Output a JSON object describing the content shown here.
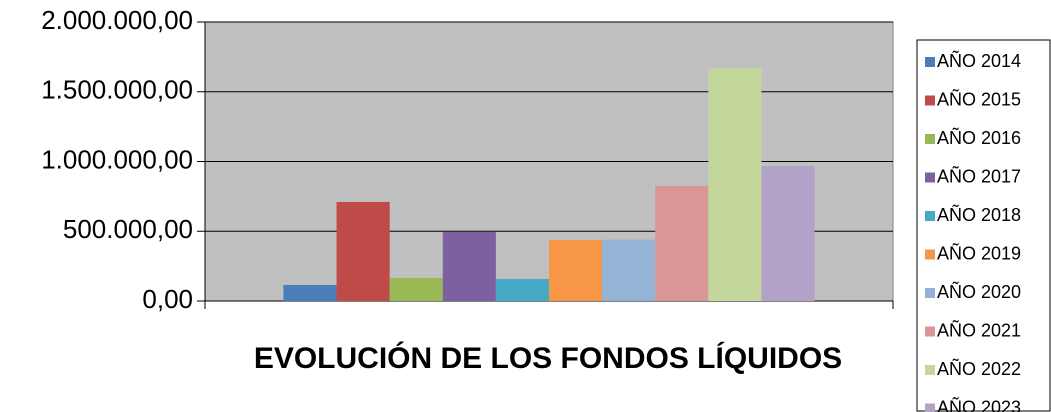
{
  "chart_data": {
    "type": "bar",
    "title": "EVOLUCIÓN DE LOS FONDOS LÍQUIDOS",
    "series": [
      {
        "name": "AÑO 2014",
        "color": "#4a7ebb",
        "values": [
          115000
        ]
      },
      {
        "name": "AÑO 2015",
        "color": "#be4b48",
        "values": [
          710000
        ]
      },
      {
        "name": "AÑO 2016",
        "color": "#98b954",
        "values": [
          165000
        ]
      },
      {
        "name": "AÑO 2017",
        "color": "#7d60a0",
        "values": [
          495000
        ]
      },
      {
        "name": "AÑO 2018",
        "color": "#46aac5",
        "values": [
          158000
        ]
      },
      {
        "name": "AÑO 2019",
        "color": "#f79646",
        "values": [
          437000
        ]
      },
      {
        "name": "AÑO 2020",
        "color": "#95b3d7",
        "values": [
          440000
        ]
      },
      {
        "name": "AÑO 2021",
        "color": "#d99694",
        "values": [
          824000
        ]
      },
      {
        "name": "AÑO 2022",
        "color": "#c3d69b",
        "values": [
          1670000
        ]
      },
      {
        "name": "AÑO 2023",
        "color": "#b3a2c7",
        "values": [
          968000
        ]
      }
    ],
    "ylim": [
      0,
      2000000
    ],
    "yticks": [
      {
        "value": 0,
        "label": "0,00"
      },
      {
        "value": 500000,
        "label": "500.000,00"
      },
      {
        "value": 1000000,
        "label": "1.000.000,00"
      },
      {
        "value": 1500000,
        "label": "1.500.000,00"
      },
      {
        "value": 2000000,
        "label": "2.000.000,00"
      }
    ],
    "grid": true,
    "legend": "right",
    "plot_background": "#c0c0c0"
  }
}
